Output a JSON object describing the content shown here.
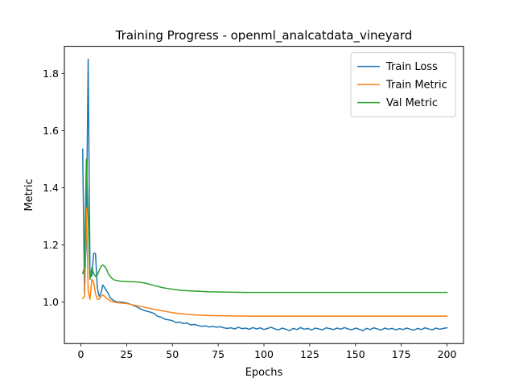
{
  "chart_data": {
    "type": "line",
    "title": "Training Progress - openml_analcatdata_vineyard",
    "xlabel": "Epochs",
    "ylabel": "Metric",
    "xlim": [
      -9,
      209
    ],
    "ylim": [
      0.855,
      1.895
    ],
    "xticks": [
      0,
      25,
      50,
      75,
      100,
      125,
      150,
      175,
      200
    ],
    "yticks": [
      1.0,
      1.2,
      1.4,
      1.6,
      1.8
    ],
    "ytick_labels": [
      "1.0",
      "1.2",
      "1.4",
      "1.6",
      "1.8"
    ],
    "grid": false,
    "legend_position": "top-right",
    "series": [
      {
        "name": "Train Loss",
        "color": "#1f77b4",
        "points": [
          [
            1,
            1.535
          ],
          [
            2,
            1.03
          ],
          [
            3,
            1.25
          ],
          [
            4,
            1.85
          ],
          [
            5,
            1.1
          ],
          [
            6,
            1.09
          ],
          [
            7,
            1.17
          ],
          [
            8,
            1.17
          ],
          [
            9,
            1.05
          ],
          [
            10,
            1.02
          ],
          [
            11,
            1.03
          ],
          [
            12,
            1.06
          ],
          [
            13,
            1.05
          ],
          [
            14,
            1.04
          ],
          [
            15,
            1.03
          ],
          [
            16,
            1.015
          ],
          [
            17,
            1.01
          ],
          [
            18,
            1.005
          ],
          [
            20,
            1.0
          ],
          [
            22,
            1.0
          ],
          [
            24,
            0.998
          ],
          [
            26,
            0.995
          ],
          [
            28,
            0.99
          ],
          [
            30,
            0.985
          ],
          [
            32,
            0.978
          ],
          [
            34,
            0.972
          ],
          [
            36,
            0.968
          ],
          [
            38,
            0.965
          ],
          [
            40,
            0.96
          ],
          [
            42,
            0.95
          ],
          [
            44,
            0.947
          ],
          [
            46,
            0.94
          ],
          [
            48,
            0.938
          ],
          [
            50,
            0.935
          ],
          [
            52,
            0.928
          ],
          [
            54,
            0.93
          ],
          [
            56,
            0.925
          ],
          [
            58,
            0.927
          ],
          [
            60,
            0.92
          ],
          [
            62,
            0.922
          ],
          [
            64,
            0.918
          ],
          [
            66,
            0.915
          ],
          [
            68,
            0.917
          ],
          [
            70,
            0.913
          ],
          [
            72,
            0.915
          ],
          [
            74,
            0.912
          ],
          [
            76,
            0.914
          ],
          [
            78,
            0.91
          ],
          [
            80,
            0.908
          ],
          [
            82,
            0.91
          ],
          [
            84,
            0.906
          ],
          [
            86,
            0.912
          ],
          [
            88,
            0.907
          ],
          [
            90,
            0.909
          ],
          [
            92,
            0.905
          ],
          [
            94,
            0.911
          ],
          [
            96,
            0.906
          ],
          [
            98,
            0.91
          ],
          [
            100,
            0.904
          ],
          [
            102,
            0.908
          ],
          [
            104,
            0.912
          ],
          [
            106,
            0.906
          ],
          [
            108,
            0.903
          ],
          [
            110,
            0.909
          ],
          [
            112,
            0.905
          ],
          [
            114,
            0.9
          ],
          [
            116,
            0.908
          ],
          [
            118,
            0.904
          ],
          [
            120,
            0.911
          ],
          [
            122,
            0.905
          ],
          [
            124,
            0.908
          ],
          [
            126,
            0.902
          ],
          [
            128,
            0.909
          ],
          [
            130,
            0.906
          ],
          [
            132,
            0.903
          ],
          [
            134,
            0.91
          ],
          [
            136,
            0.907
          ],
          [
            138,
            0.904
          ],
          [
            140,
            0.909
          ],
          [
            142,
            0.905
          ],
          [
            144,
            0.911
          ],
          [
            146,
            0.906
          ],
          [
            148,
            0.903
          ],
          [
            150,
            0.909
          ],
          [
            152,
            0.905
          ],
          [
            154,
            0.9
          ],
          [
            156,
            0.908
          ],
          [
            158,
            0.904
          ],
          [
            160,
            0.91
          ],
          [
            162,
            0.906
          ],
          [
            164,
            0.902
          ],
          [
            166,
            0.909
          ],
          [
            168,
            0.905
          ],
          [
            170,
            0.908
          ],
          [
            172,
            0.903
          ],
          [
            174,
            0.907
          ],
          [
            176,
            0.904
          ],
          [
            178,
            0.909
          ],
          [
            180,
            0.905
          ],
          [
            182,
            0.902
          ],
          [
            184,
            0.908
          ],
          [
            186,
            0.904
          ],
          [
            188,
            0.91
          ],
          [
            190,
            0.906
          ],
          [
            192,
            0.903
          ],
          [
            194,
            0.909
          ],
          [
            196,
            0.905
          ],
          [
            198,
            0.908
          ],
          [
            200,
            0.91
          ]
        ]
      },
      {
        "name": "Train Metric",
        "color": "#ff7f0e",
        "points": [
          [
            1,
            1.013
          ],
          [
            2,
            1.02
          ],
          [
            3,
            1.33
          ],
          [
            4,
            1.04
          ],
          [
            5,
            1.01
          ],
          [
            6,
            1.08
          ],
          [
            7,
            1.07
          ],
          [
            8,
            1.03
          ],
          [
            9,
            1.01
          ],
          [
            10,
            1.01
          ],
          [
            11,
            1.02
          ],
          [
            12,
            1.025
          ],
          [
            13,
            1.02
          ],
          [
            14,
            1.013
          ],
          [
            16,
            1.005
          ],
          [
            18,
            1.0
          ],
          [
            20,
            0.998
          ],
          [
            25,
            0.995
          ],
          [
            30,
            0.988
          ],
          [
            35,
            0.982
          ],
          [
            40,
            0.975
          ],
          [
            45,
            0.969
          ],
          [
            50,
            0.963
          ],
          [
            55,
            0.959
          ],
          [
            60,
            0.956
          ],
          [
            65,
            0.954
          ],
          [
            70,
            0.953
          ],
          [
            80,
            0.952
          ],
          [
            90,
            0.951
          ],
          [
            100,
            0.951
          ],
          [
            125,
            0.951
          ],
          [
            150,
            0.951
          ],
          [
            175,
            0.951
          ],
          [
            200,
            0.951
          ]
        ]
      },
      {
        "name": "Val Metric",
        "color": "#2ca02c",
        "points": [
          [
            1,
            1.1
          ],
          [
            2,
            1.12
          ],
          [
            3,
            1.5
          ],
          [
            4,
            1.3
          ],
          [
            5,
            1.08
          ],
          [
            6,
            1.12
          ],
          [
            7,
            1.1
          ],
          [
            8,
            1.09
          ],
          [
            9,
            1.095
          ],
          [
            10,
            1.11
          ],
          [
            11,
            1.125
          ],
          [
            12,
            1.13
          ],
          [
            13,
            1.125
          ],
          [
            14,
            1.115
          ],
          [
            15,
            1.1
          ],
          [
            16,
            1.09
          ],
          [
            17,
            1.083
          ],
          [
            18,
            1.078
          ],
          [
            20,
            1.075
          ],
          [
            22,
            1.073
          ],
          [
            25,
            1.072
          ],
          [
            30,
            1.071
          ],
          [
            35,
            1.067
          ],
          [
            40,
            1.058
          ],
          [
            45,
            1.05
          ],
          [
            50,
            1.045
          ],
          [
            55,
            1.041
          ],
          [
            60,
            1.039
          ],
          [
            70,
            1.036
          ],
          [
            80,
            1.035
          ],
          [
            90,
            1.034
          ],
          [
            100,
            1.034
          ],
          [
            125,
            1.034
          ],
          [
            150,
            1.034
          ],
          [
            175,
            1.034
          ],
          [
            200,
            1.034
          ]
        ]
      }
    ]
  }
}
